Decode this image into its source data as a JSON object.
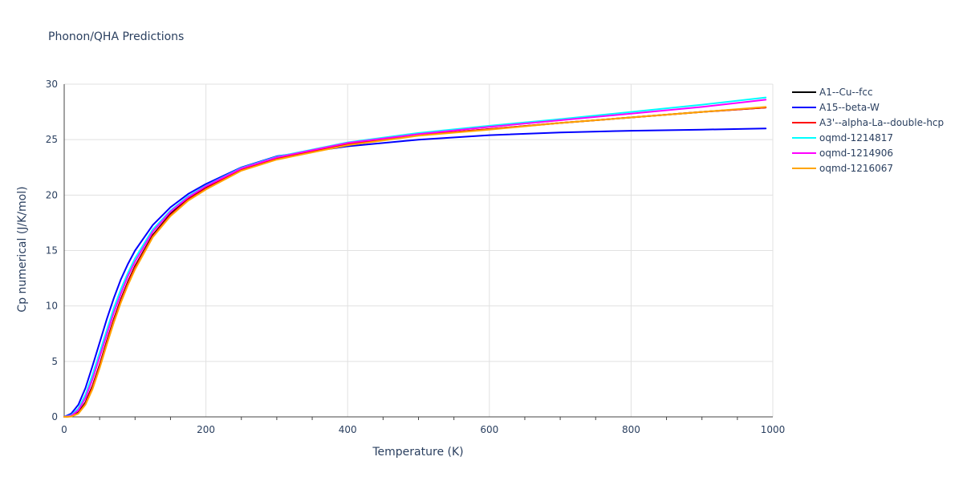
{
  "chart_data": {
    "type": "line",
    "title": "Phonon/QHA Predictions",
    "xlabel": "Temperature (K)",
    "ylabel": "Cp numerical (J/K/mol)",
    "xlim": [
      0,
      1000
    ],
    "ylim": [
      0,
      30
    ],
    "xticks": [
      0,
      200,
      400,
      600,
      800,
      1000
    ],
    "yticks": [
      0,
      5,
      10,
      15,
      20,
      25,
      30
    ],
    "grid": true,
    "legend_position": "top-right",
    "x": [
      0,
      10,
      20,
      30,
      40,
      50,
      60,
      70,
      80,
      90,
      100,
      125,
      150,
      175,
      200,
      250,
      300,
      400,
      500,
      600,
      700,
      800,
      900,
      990
    ],
    "series": [
      {
        "name": "A1--Cu--fcc",
        "color": "#000000",
        "values": [
          0,
          0.05,
          0.4,
          1.3,
          2.8,
          4.7,
          6.8,
          8.8,
          10.6,
          12.2,
          13.6,
          16.4,
          18.3,
          19.7,
          20.7,
          22.3,
          23.3,
          24.6,
          25.4,
          25.95,
          26.5,
          27.0,
          27.5,
          27.9
        ]
      },
      {
        "name": "A15--beta-W",
        "color": "#0000ff",
        "values": [
          0,
          0.3,
          1.1,
          2.6,
          4.6,
          6.7,
          8.8,
          10.7,
          12.4,
          13.8,
          15.0,
          17.3,
          18.9,
          20.1,
          21.0,
          22.5,
          23.5,
          24.4,
          25.0,
          25.4,
          25.65,
          25.8,
          25.9,
          26.0
        ]
      },
      {
        "name": "A3'--alpha-La--double-hcp",
        "color": "#ff0000",
        "values": [
          0,
          0.04,
          0.35,
          1.2,
          2.7,
          4.6,
          6.7,
          8.7,
          10.5,
          12.1,
          13.5,
          16.3,
          18.2,
          19.6,
          20.6,
          22.3,
          23.3,
          24.6,
          25.4,
          25.95,
          26.5,
          27.0,
          27.5,
          27.9
        ]
      },
      {
        "name": "oqmd-1214817",
        "color": "#00ffff",
        "values": [
          0,
          0.15,
          0.75,
          2.0,
          3.8,
          5.8,
          7.8,
          9.8,
          11.5,
          13.0,
          14.3,
          16.9,
          18.6,
          19.9,
          20.85,
          22.45,
          23.45,
          24.75,
          25.6,
          26.25,
          26.85,
          27.5,
          28.15,
          28.8
        ]
      },
      {
        "name": "oqmd-1214906",
        "color": "#ff00ff",
        "values": [
          0,
          0.1,
          0.6,
          1.7,
          3.4,
          5.4,
          7.4,
          9.4,
          11.1,
          12.7,
          14.0,
          16.7,
          18.5,
          19.8,
          20.8,
          22.4,
          23.4,
          24.7,
          25.5,
          26.15,
          26.75,
          27.35,
          27.95,
          28.6
        ]
      },
      {
        "name": "oqmd-1216067",
        "color": "#ffa500",
        "values": [
          0,
          0.03,
          0.3,
          1.1,
          2.5,
          4.4,
          6.5,
          8.5,
          10.3,
          11.9,
          13.3,
          16.2,
          18.1,
          19.5,
          20.5,
          22.2,
          23.2,
          24.5,
          25.35,
          25.9,
          26.5,
          27.0,
          27.5,
          27.95
        ]
      }
    ]
  }
}
